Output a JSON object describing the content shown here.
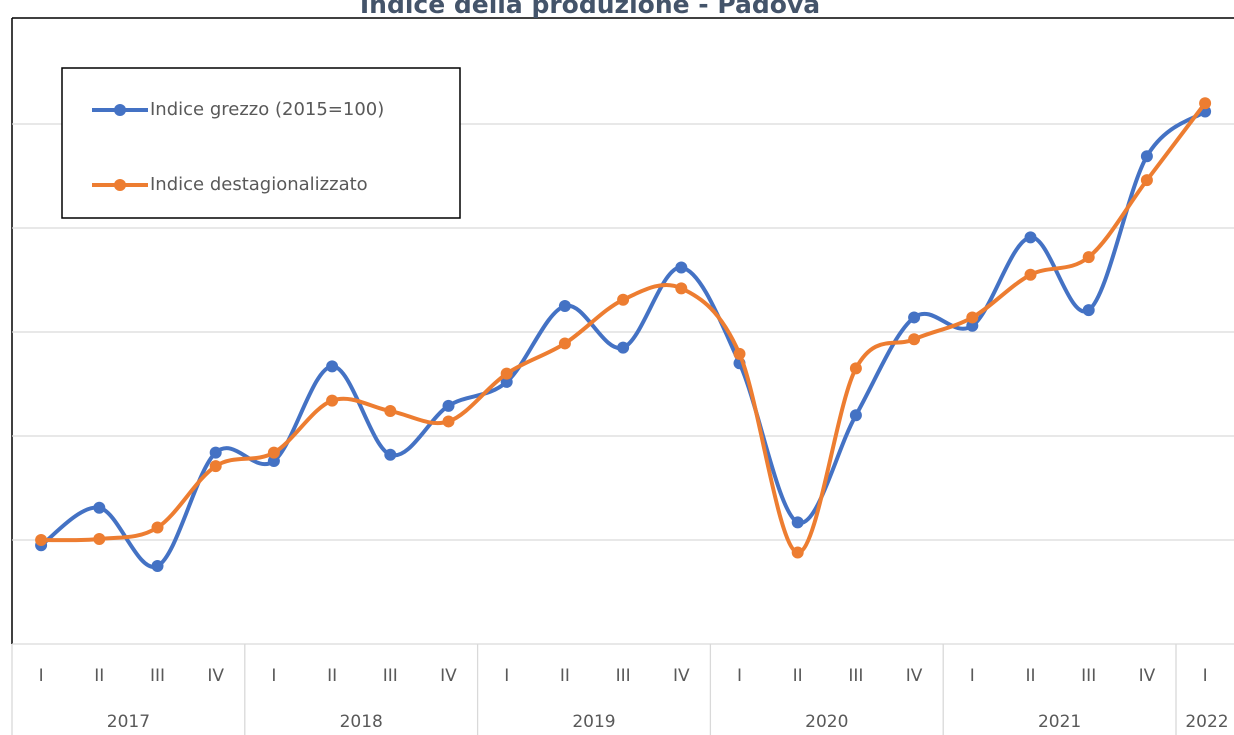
{
  "chart_data": {
    "type": "line",
    "title": "Indice della produzione - Padova",
    "categories": [
      "I",
      "II",
      "III",
      "IV",
      "I",
      "II",
      "III",
      "IV",
      "I",
      "II",
      "III",
      "IV",
      "I",
      "II",
      "III",
      "IV",
      "I",
      "II",
      "III",
      "IV",
      "I"
    ],
    "years": [
      "2017",
      null,
      null,
      null,
      "2018",
      null,
      null,
      null,
      "2019",
      null,
      null,
      null,
      "2020",
      null,
      null,
      null,
      "2021",
      null,
      null,
      null,
      "2022"
    ],
    "series": [
      {
        "name": "Indice grezzo (2015=100)",
        "color": "#4472c4",
        "values": [
          0.95,
          1.31,
          0.75,
          1.84,
          1.76,
          2.67,
          1.82,
          2.29,
          2.52,
          3.25,
          2.85,
          3.62,
          2.7,
          1.17,
          2.2,
          3.14,
          3.06,
          3.91,
          3.21,
          4.69,
          5.12
        ]
      },
      {
        "name": "Indice destagionalizzato",
        "color": "#ed7d31",
        "values": [
          1.0,
          1.01,
          1.12,
          1.71,
          1.84,
          2.34,
          2.24,
          2.14,
          2.6,
          2.89,
          3.31,
          3.42,
          2.79,
          0.88,
          2.65,
          2.93,
          3.14,
          3.55,
          3.72,
          4.46,
          5.2
        ]
      }
    ],
    "ylim": [
      0,
      6
    ],
    "yticks": [
      1,
      2,
      3,
      4,
      5
    ],
    "ytick_labels": false,
    "grid": true,
    "smooth": true,
    "legend": "top-left"
  }
}
